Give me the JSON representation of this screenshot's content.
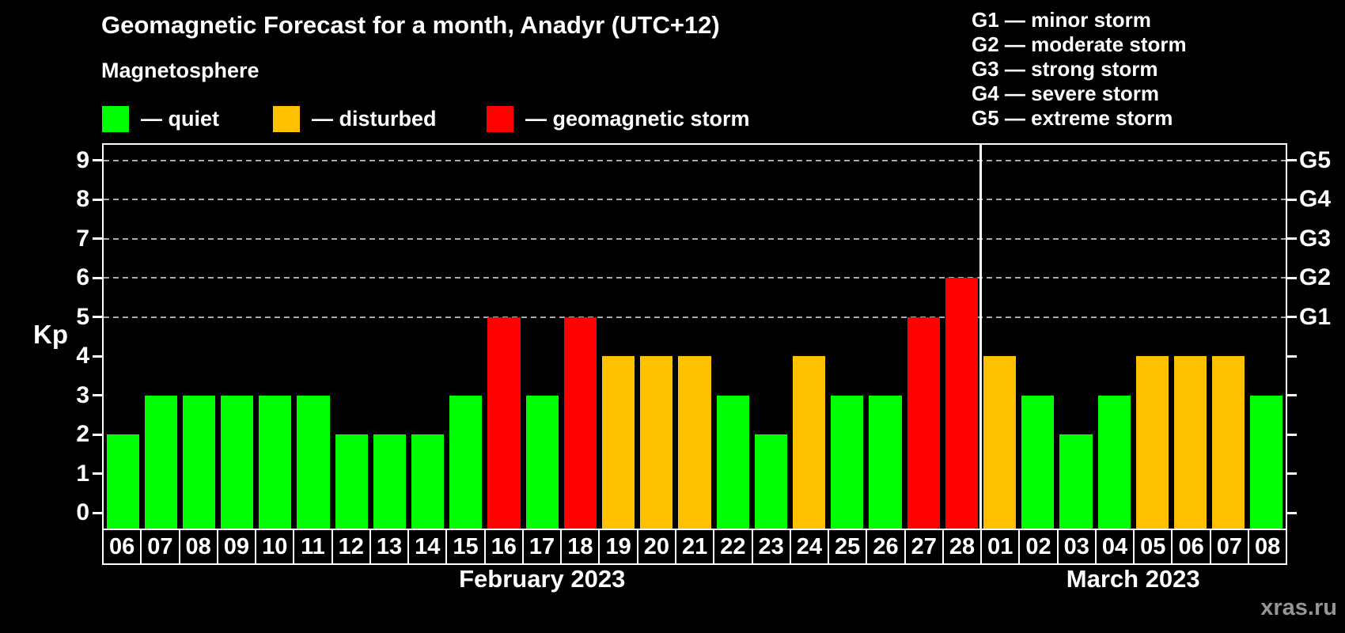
{
  "title": "Geomagnetic Forecast for a month, Anadyr (UTC+12)",
  "legend": {
    "heading": "Magnetosphere",
    "items": [
      {
        "key": "quiet",
        "label": "— quiet",
        "color": "#00ff00"
      },
      {
        "key": "disturbed",
        "label": "— disturbed",
        "color": "#ffc000"
      },
      {
        "key": "storm",
        "label": "— geomagnetic storm",
        "color": "#ff0000"
      }
    ]
  },
  "g_legend": [
    "G1 — minor storm",
    "G2 — moderate storm",
    "G3 — strong storm",
    "G4 — severe storm",
    "G5 — extreme storm"
  ],
  "watermark": "xras.ru",
  "chart_data": {
    "type": "bar",
    "ylabel": "Kp",
    "ylim": [
      -0.4,
      9.4
    ],
    "yticks": [
      0,
      1,
      2,
      3,
      4,
      5,
      6,
      7,
      8,
      9
    ],
    "grid_levels": [
      5,
      6,
      7,
      8,
      9
    ],
    "grid_color": "#aaaaaa",
    "axis_color": "#ffffff",
    "background": "#000000",
    "right_axis_labels": [
      {
        "kp": 5,
        "label": "G1"
      },
      {
        "kp": 6,
        "label": "G2"
      },
      {
        "kp": 7,
        "label": "G3"
      },
      {
        "kp": 8,
        "label": "G4"
      },
      {
        "kp": 9,
        "label": "G5"
      }
    ],
    "months": [
      {
        "label": "February 2023",
        "days": 23
      },
      {
        "label": "March 2023",
        "days": 8
      }
    ],
    "days": [
      {
        "date": "06",
        "kp": 2,
        "status": "quiet"
      },
      {
        "date": "07",
        "kp": 3,
        "status": "quiet"
      },
      {
        "date": "08",
        "kp": 3,
        "status": "quiet"
      },
      {
        "date": "09",
        "kp": 3,
        "status": "quiet"
      },
      {
        "date": "10",
        "kp": 3,
        "status": "quiet"
      },
      {
        "date": "11",
        "kp": 3,
        "status": "quiet"
      },
      {
        "date": "12",
        "kp": 2,
        "status": "quiet"
      },
      {
        "date": "13",
        "kp": 2,
        "status": "quiet"
      },
      {
        "date": "14",
        "kp": 2,
        "status": "quiet"
      },
      {
        "date": "15",
        "kp": 3,
        "status": "quiet"
      },
      {
        "date": "16",
        "kp": 5,
        "status": "storm"
      },
      {
        "date": "17",
        "kp": 3,
        "status": "quiet"
      },
      {
        "date": "18",
        "kp": 5,
        "status": "storm"
      },
      {
        "date": "19",
        "kp": 4,
        "status": "disturbed"
      },
      {
        "date": "20",
        "kp": 4,
        "status": "disturbed"
      },
      {
        "date": "21",
        "kp": 4,
        "status": "disturbed"
      },
      {
        "date": "22",
        "kp": 3,
        "status": "quiet"
      },
      {
        "date": "23",
        "kp": 2,
        "status": "quiet"
      },
      {
        "date": "24",
        "kp": 4,
        "status": "disturbed"
      },
      {
        "date": "25",
        "kp": 3,
        "status": "quiet"
      },
      {
        "date": "26",
        "kp": 3,
        "status": "quiet"
      },
      {
        "date": "27",
        "kp": 5,
        "status": "storm"
      },
      {
        "date": "28",
        "kp": 6,
        "status": "storm"
      },
      {
        "date": "01",
        "kp": 4,
        "status": "disturbed"
      },
      {
        "date": "02",
        "kp": 3,
        "status": "quiet"
      },
      {
        "date": "03",
        "kp": 2,
        "status": "quiet"
      },
      {
        "date": "04",
        "kp": 3,
        "status": "quiet"
      },
      {
        "date": "05",
        "kp": 4,
        "status": "disturbed"
      },
      {
        "date": "06",
        "kp": 4,
        "status": "disturbed"
      },
      {
        "date": "07",
        "kp": 4,
        "status": "disturbed"
      },
      {
        "date": "08",
        "kp": 3,
        "status": "quiet"
      }
    ]
  }
}
